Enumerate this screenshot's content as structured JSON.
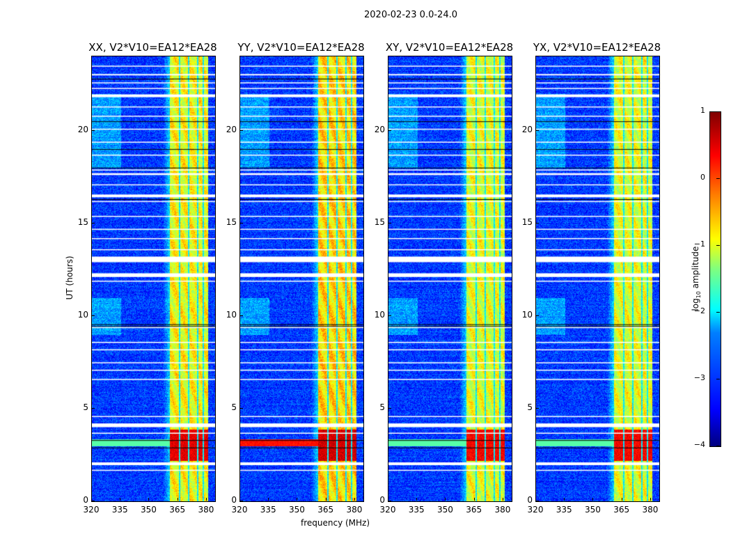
{
  "chart_data": {
    "type": "heatmap",
    "title": "2020-02-23 0.0-24.0",
    "xlabel": "frequency (MHz)",
    "ylabel": "UT (hours)",
    "xlim": [
      320,
      384.4
    ],
    "ylim": [
      0,
      24
    ],
    "xticks": [
      "320",
      "335",
      "350",
      "365",
      "380"
    ],
    "xtick_values": [
      320,
      335,
      350,
      365,
      380
    ],
    "yticks": [
      "0",
      "5",
      "10",
      "15",
      "20"
    ],
    "ytick_values": [
      0,
      5,
      10,
      15,
      20
    ],
    "panels": [
      {
        "title": "XX, V2*V10=EA12*EA28",
        "band_level": -0.9,
        "rfi_hours": [
          2.2,
          3.9
        ],
        "rfi_level": 0.5,
        "low_band_rfi": false
      },
      {
        "title": "YY, V2*V10=EA12*EA28",
        "band_level": -0.7,
        "rfi_hours": [
          2.2,
          3.9
        ],
        "rfi_level": 0.6,
        "low_band_rfi": true
      },
      {
        "title": "XY, V2*V10=EA12*EA28",
        "band_level": -1.0,
        "rfi_hours": [
          2.2,
          3.9
        ],
        "rfi_level": 0.4,
        "low_band_rfi": false
      },
      {
        "title": "YX, V2*V10=EA12*EA28",
        "band_level": -1.0,
        "rfi_hours": [
          2.2,
          3.9
        ],
        "rfi_level": 0.4,
        "low_band_rfi": false
      }
    ],
    "background_level": -3.1,
    "band_mhz": [
      360.5,
      380.5
    ],
    "channel_gaps_mhz": [
      365.6,
      370.3,
      375.0,
      378.0
    ],
    "flagged_hours": [
      [
        1.95,
        2.1
      ],
      [
        4.0,
        4.2
      ],
      [
        12.1,
        12.3
      ],
      [
        12.9,
        13.2
      ],
      [
        16.4,
        16.55
      ],
      [
        17.6,
        17.7
      ],
      [
        21.8,
        21.95
      ],
      [
        23.0,
        23.05
      ]
    ],
    "flagged_lines_hours": [
      1.7,
      3.7,
      4.6,
      6.6,
      7.1,
      7.5,
      8.2,
      8.6,
      9.4,
      11.9,
      13.6,
      14.2,
      14.7,
      15.4,
      16.2,
      17.1,
      17.9,
      18.7,
      19.4,
      20.1,
      20.8,
      21.3,
      22.3,
      22.6,
      23.5
    ],
    "dark_lines_hours": [
      2.9,
      3.3,
      9.45,
      9.55,
      16.3,
      18.0,
      19.0,
      20.5,
      22.8
    ],
    "colorbar": {
      "label": "log",
      "label_sub": "10",
      "label_rest": " amplitude",
      "ticks": [
        "1",
        "0",
        "−1",
        "−2",
        "−3",
        "−4"
      ],
      "tick_values": [
        1,
        0,
        -1,
        -2,
        -3,
        -4
      ],
      "range": [
        -4,
        1
      ]
    }
  }
}
